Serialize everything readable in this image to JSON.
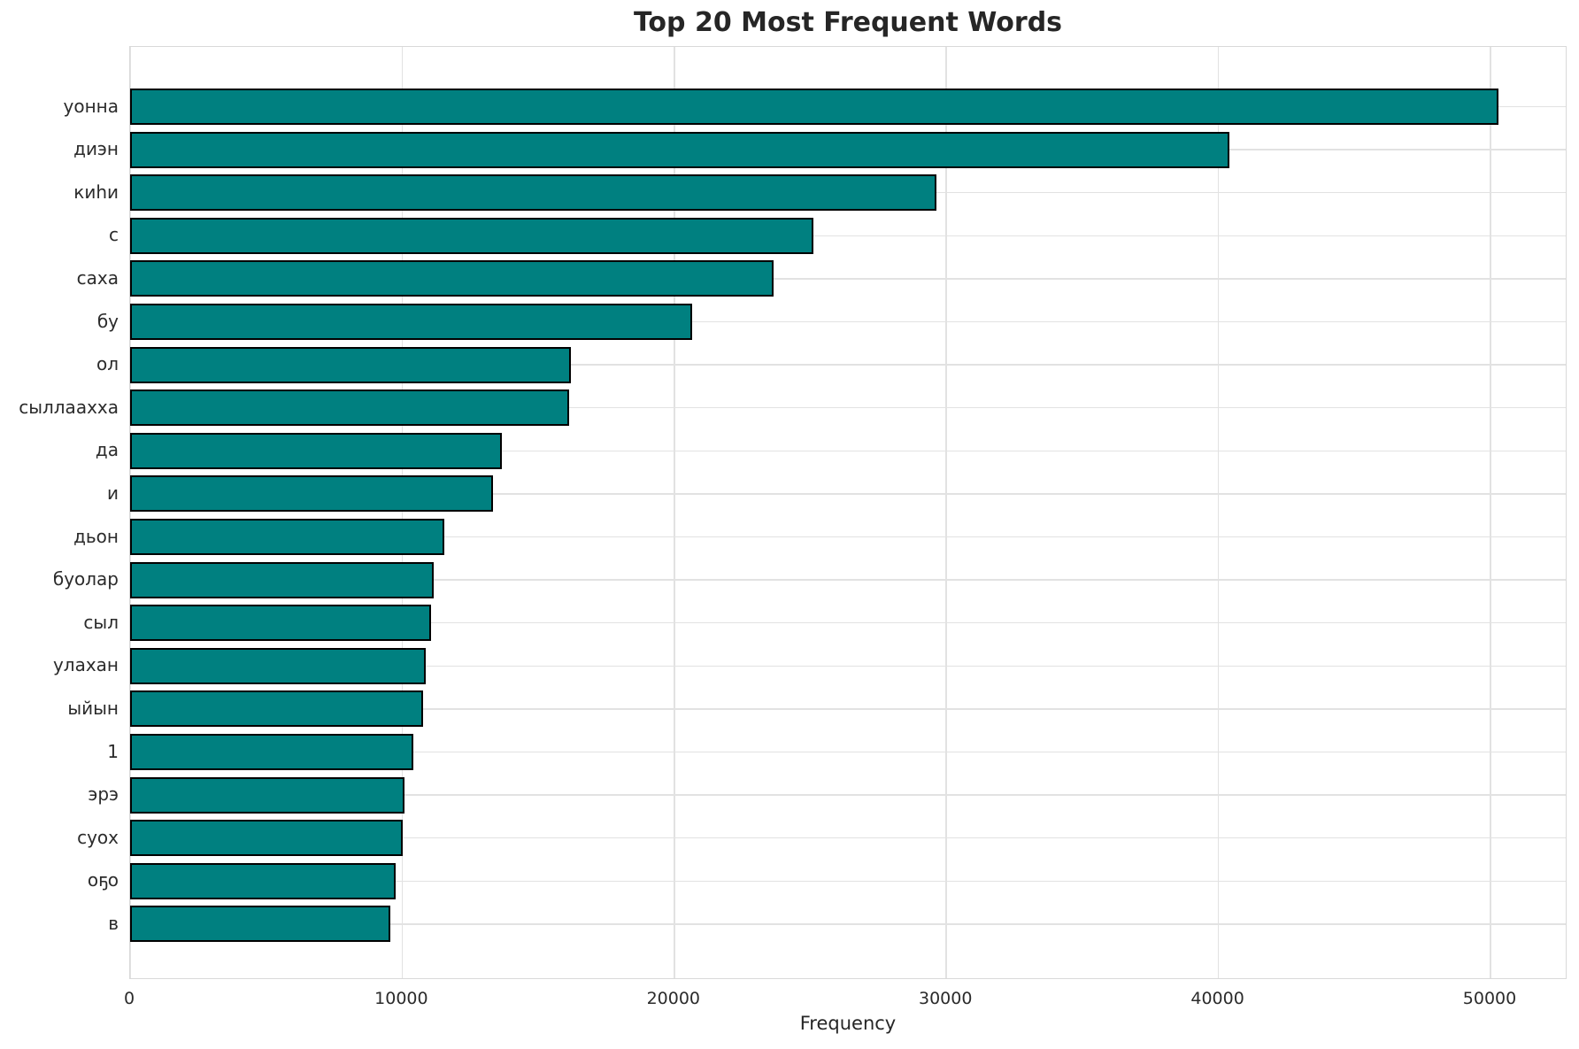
{
  "header": {
    "title": "Top 20 Most Frequent Words"
  },
  "chart_data": {
    "type": "bar",
    "orientation": "horizontal",
    "title": "Top 20 Most Frequent Words",
    "xlabel": "Frequency",
    "ylabel": "",
    "categories": [
      "уонна",
      "диэн",
      "киһи",
      "с",
      "саха",
      "бу",
      "ол",
      "сыллаахха",
      "да",
      "и",
      "дьон",
      "буолар",
      "сыл",
      "улахан",
      "ыйын",
      "1",
      "эрэ",
      "суох",
      "оҕо",
      "в"
    ],
    "values": [
      50300,
      40400,
      29650,
      25100,
      23650,
      20650,
      16200,
      16150,
      13650,
      13350,
      11550,
      11150,
      11050,
      10850,
      10780,
      10400,
      10100,
      10020,
      9750,
      9550
    ],
    "xlim": [
      0,
      52830
    ],
    "xticks": [
      0,
      10000,
      20000,
      30000,
      40000,
      50000
    ],
    "xtick_labels": [
      "0",
      "10000",
      "20000",
      "30000",
      "40000",
      "50000"
    ],
    "grid": true,
    "legend": null,
    "bar_color": "#008080",
    "bar_edge_color": "#000000",
    "grid_color": "#e2e2e2",
    "background": "#ffffff"
  }
}
